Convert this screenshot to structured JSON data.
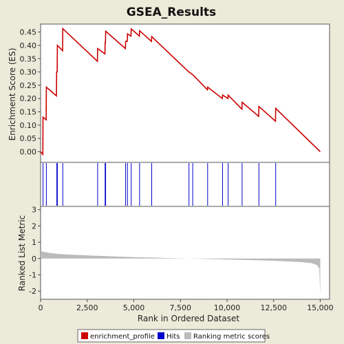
{
  "chart_data": {
    "type": "line",
    "title": "GSEA_Results",
    "xlabel": "Rank in Ordered Dataset",
    "x_ticks": [
      0,
      2500,
      5000,
      7500,
      10000,
      12500,
      15000
    ],
    "x_tick_labels": [
      "0",
      "2,500",
      "5,000",
      "7,500",
      "10,000",
      "12,500",
      "15,000"
    ],
    "xlim": [
      0,
      15500
    ],
    "top_panel": {
      "ylabel": "Enrichment Score (ES)",
      "ylim": [
        -0.04,
        0.48
      ],
      "y_ticks": [
        0.0,
        0.05,
        0.1,
        0.15,
        0.2,
        0.25,
        0.3,
        0.35,
        0.4,
        0.45
      ],
      "y_tick_labels": [
        "0.00",
        "0.05",
        "0.10",
        "0.15",
        "0.20",
        "0.25",
        "0.30",
        "0.35",
        "0.40",
        "0.45"
      ],
      "series": [
        {
          "name": "enrichment_profile",
          "color": "#cc0000",
          "x": [
            0,
            120,
            130,
            300,
            310,
            850,
            860,
            890,
            900,
            1180,
            1190,
            3050,
            3060,
            3450,
            3460,
            3480,
            3490,
            4550,
            4560,
            4650,
            4660,
            4850,
            4860,
            5300,
            5310,
            5950,
            5960,
            7950,
            7960,
            8150,
            8160,
            8950,
            8960,
            9750,
            9760,
            10050,
            10060,
            10800,
            10810,
            11700,
            11710,
            12600,
            12610,
            15000
          ],
          "y": [
            0.0,
            -0.01,
            0.13,
            0.12,
            0.243,
            0.21,
            0.3,
            0.3,
            0.4,
            0.38,
            0.463,
            0.34,
            0.388,
            0.368,
            0.41,
            0.41,
            0.453,
            0.388,
            0.415,
            0.415,
            0.443,
            0.435,
            0.462,
            0.435,
            0.455,
            0.415,
            0.433,
            0.3,
            0.3,
            0.29,
            0.29,
            0.233,
            0.243,
            0.2,
            0.213,
            0.2,
            0.213,
            0.16,
            0.186,
            0.133,
            0.17,
            0.115,
            0.163,
            0.0
          ]
        }
      ]
    },
    "hits_panel": {
      "color": "#0000cc",
      "hits": [
        130,
        310,
        870,
        900,
        1190,
        3060,
        3460,
        3490,
        4560,
        4660,
        4860,
        5310,
        5960,
        7960,
        8160,
        8960,
        9760,
        10060,
        10810,
        11710,
        12610
      ]
    },
    "bottom_panel": {
      "ylabel": "Ranked List Metric",
      "ylim": [
        -2.5,
        3.2
      ],
      "y_ticks": [
        -2,
        -1,
        0,
        1,
        2,
        3
      ],
      "y_tick_labels": [
        "-2",
        "-1",
        "0",
        "1",
        "2",
        "3"
      ],
      "series": [
        {
          "name": "Ranking metric scores",
          "color": "#bbbbbb",
          "x": [
            0,
            100,
            500,
            1000,
            2000,
            3000,
            4000,
            5000,
            6000,
            7000,
            8000,
            9000,
            10000,
            11000,
            12000,
            13000,
            14000,
            14500,
            14800,
            14950,
            15000
          ],
          "y": [
            0.5,
            0.42,
            0.34,
            0.28,
            0.22,
            0.17,
            0.13,
            0.09,
            0.06,
            0.03,
            0.0,
            -0.03,
            -0.06,
            -0.09,
            -0.12,
            -0.16,
            -0.22,
            -0.28,
            -0.38,
            -0.6,
            -2.3
          ]
        }
      ]
    },
    "legend": {
      "placement": "bottom",
      "entries": [
        {
          "label": "enrichment_profile",
          "color": "#cc0000"
        },
        {
          "label": "Hits",
          "color": "#0000cc"
        },
        {
          "label": "Ranking metric scores",
          "color": "#bbbbbb"
        }
      ]
    }
  }
}
